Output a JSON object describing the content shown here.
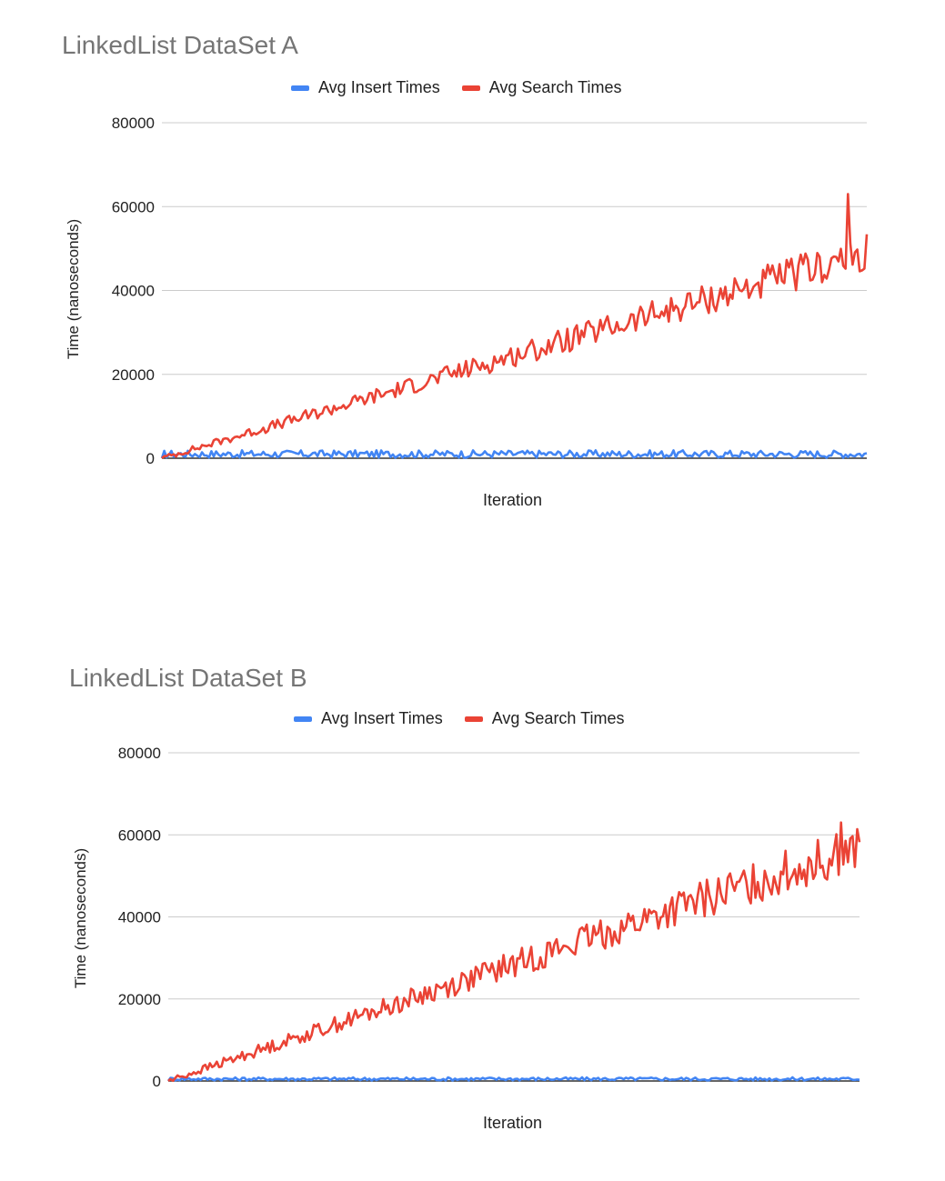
{
  "chart_data": [
    {
      "type": "line",
      "title": "LinkedList DataSet A",
      "xlabel": "Iteration",
      "ylabel": "Time (nanoseconds)",
      "ylim": [
        0,
        80000
      ],
      "yticks": [
        0,
        20000,
        40000,
        60000,
        80000
      ],
      "grid": true,
      "legend_position": "top",
      "series": [
        {
          "name": "Avg Insert Times",
          "color": "#4285f4",
          "pattern": "flat-noisy",
          "mean": 1000,
          "spread": 900,
          "points": 300
        },
        {
          "name": "Avg Search Times",
          "color": "#ea4335",
          "pattern": "rising-noisy",
          "start": 0,
          "end": 49000,
          "spread": 4000,
          "peak": 63000,
          "points": 300
        }
      ]
    },
    {
      "type": "line",
      "title": "LinkedList DataSet B",
      "xlabel": "Iteration",
      "ylabel": "Time (nanoseconds)",
      "ylim": [
        0,
        80000
      ],
      "yticks": [
        0,
        20000,
        40000,
        60000,
        80000
      ],
      "grid": true,
      "legend_position": "top",
      "series": [
        {
          "name": "Avg Insert Times",
          "color": "#4285f4",
          "pattern": "flat-noisy",
          "mean": 500,
          "spread": 400,
          "points": 300
        },
        {
          "name": "Avg Search Times",
          "color": "#ea4335",
          "pattern": "rising-noisy",
          "start": 0,
          "end": 57000,
          "spread": 5000,
          "peak": 63000,
          "points": 300
        }
      ]
    }
  ]
}
